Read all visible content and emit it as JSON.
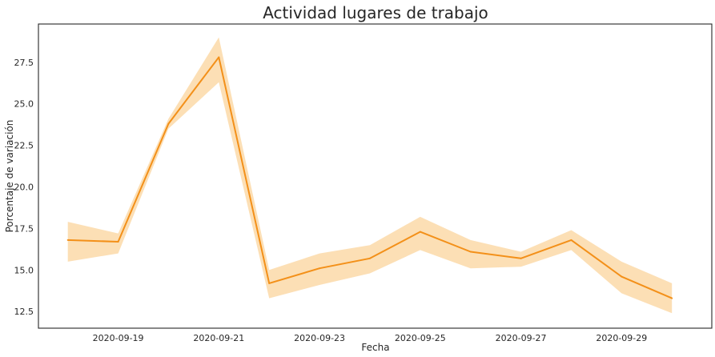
{
  "chart_data": {
    "type": "line",
    "title": "Actividad lugares de trabajo",
    "xlabel": "Fecha",
    "ylabel": "Porcentaje de variación",
    "x": [
      "2020-09-18",
      "2020-09-19",
      "2020-09-20",
      "2020-09-21",
      "2020-09-22",
      "2020-09-23",
      "2020-09-24",
      "2020-09-25",
      "2020-09-26",
      "2020-09-27",
      "2020-09-28",
      "2020-09-29",
      "2020-09-30"
    ],
    "series": [
      {
        "values": [
          16.8,
          16.7,
          23.8,
          27.8,
          14.2,
          15.1,
          15.7,
          17.3,
          16.1,
          15.7,
          16.8,
          14.6,
          13.3
        ],
        "ci_lower": [
          15.5,
          16.0,
          23.5,
          26.3,
          13.3,
          14.1,
          14.8,
          16.2,
          15.1,
          15.2,
          16.2,
          13.6,
          12.4
        ],
        "ci_upper": [
          17.9,
          17.2,
          24.1,
          29.0,
          15.0,
          16.0,
          16.5,
          18.2,
          16.8,
          16.1,
          17.4,
          15.5,
          14.2
        ]
      }
    ],
    "x_ticks": [
      "2020-09-19",
      "2020-09-21",
      "2020-09-23",
      "2020-09-25",
      "2020-09-27",
      "2020-09-29"
    ],
    "y_ticks": [
      12.5,
      15.0,
      17.5,
      20.0,
      22.5,
      25.0,
      27.5
    ],
    "ylim": [
      11.5,
      29.8
    ],
    "xlim": [
      "2020-09-17T10:00",
      "2020-09-30T19:00"
    ],
    "grid": false,
    "legend": "none",
    "line_color": "#f39019",
    "band_color": "#fbd9a8"
  }
}
